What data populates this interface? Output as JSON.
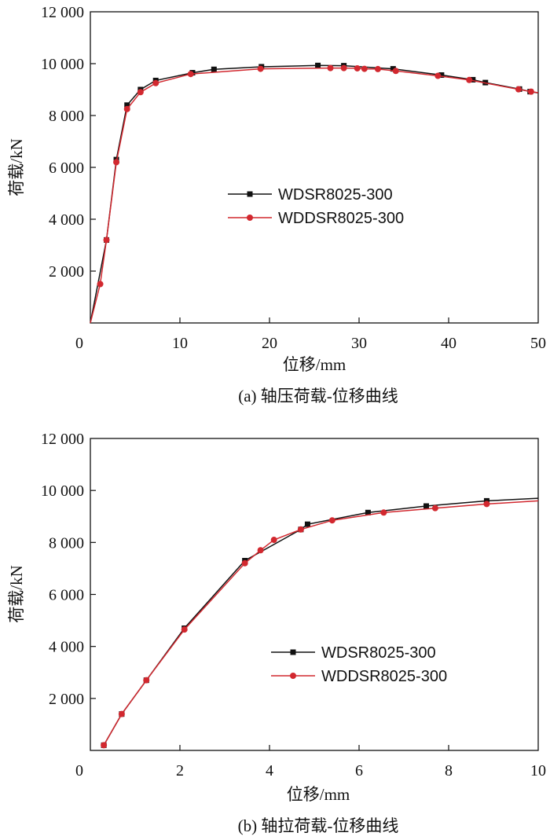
{
  "colors": {
    "series_black": "#111111",
    "series_red": "#d2282f"
  },
  "chart_data": [
    {
      "type": "line",
      "xlabel": "位移/mm",
      "ylabel": "荷载/kN",
      "caption": "(a) 轴压荷载-位移曲线",
      "xlim": [
        0,
        50
      ],
      "ylim": [
        0,
        12000
      ],
      "xticks": [
        "0",
        "10",
        "20",
        "30",
        "40",
        "50"
      ],
      "yticks": [
        "2 000",
        "4 000",
        "6 000",
        "8 000",
        "10 000",
        "12 000"
      ],
      "legend_position": "middle-left",
      "series": [
        {
          "name": "WDSR8025-300",
          "marker": "square",
          "color": "#111111",
          "x": [
            0,
            1.8,
            2.9,
            4.1,
            5.6,
            7.3,
            11.4,
            13.8,
            19.1,
            25.4,
            28.3,
            33.8,
            39.2,
            42.7,
            44.1,
            47.9,
            49.1,
            50
          ],
          "y": [
            0,
            3200,
            6300,
            8400,
            9000,
            9350,
            9650,
            9780,
            9880,
            9930,
            9920,
            9800,
            9560,
            9380,
            9270,
            9020,
            8920,
            8870
          ]
        },
        {
          "name": "WDDSR8025-300",
          "marker": "circle",
          "color": "#d2282f",
          "x": [
            0,
            1.1,
            1.8,
            2.9,
            4.1,
            5.6,
            7.3,
            11.2,
            19.0,
            26.8,
            28.3,
            29.8,
            30.6,
            32.1,
            34.1,
            38.8,
            42.3,
            47.8,
            49.2,
            50
          ],
          "y": [
            0,
            1500,
            3200,
            6200,
            8250,
            8900,
            9250,
            9600,
            9800,
            9830,
            9830,
            9820,
            9800,
            9790,
            9720,
            9530,
            9370,
            9010,
            8920,
            8880
          ]
        }
      ]
    },
    {
      "type": "line",
      "xlabel": "位移/mm",
      "ylabel": "荷载/kN",
      "caption": "(b) 轴拉荷载-位移曲线",
      "xlim": [
        0,
        10
      ],
      "ylim": [
        0,
        12000
      ],
      "xticks": [
        "0",
        "2",
        "4",
        "6",
        "8",
        "10"
      ],
      "yticks": [
        "2 000",
        "4 000",
        "6 000",
        "8 000",
        "10 000",
        "12 000"
      ],
      "legend_position": "bottom-right",
      "series": [
        {
          "name": "WDSR8025-300",
          "marker": "square",
          "color": "#111111",
          "x": [
            0.3,
            0.7,
            1.25,
            2.1,
            3.45,
            4.7,
            4.85,
            6.2,
            7.5,
            8.85,
            10
          ],
          "y": [
            200,
            1400,
            2700,
            4700,
            7300,
            8500,
            8700,
            9150,
            9400,
            9600,
            9700
          ]
        },
        {
          "name": "WDDSR8025-300",
          "marker": "circle",
          "color": "#d2282f",
          "x": [
            0.3,
            0.7,
            1.25,
            2.1,
            3.45,
            3.8,
            4.1,
            4.7,
            5.4,
            6.55,
            7.7,
            8.85,
            10
          ],
          "y": [
            200,
            1400,
            2700,
            4650,
            7200,
            7700,
            8100,
            8500,
            8850,
            9150,
            9320,
            9480,
            9600
          ]
        }
      ]
    }
  ]
}
